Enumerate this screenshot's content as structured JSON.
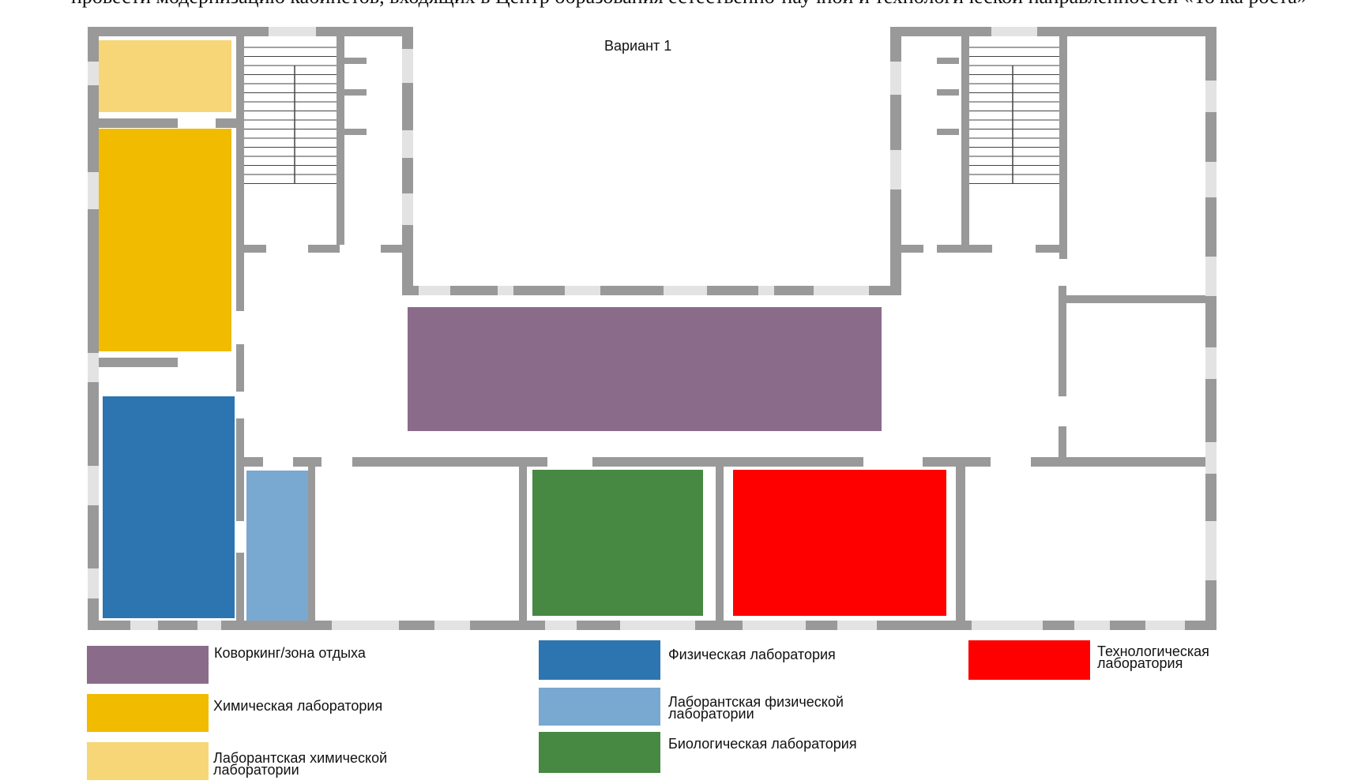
{
  "page": {
    "top_text": "провести модернизацию кабинетов, входящих в Центр образования естественно-научной и технологической направленностей «Точка роста»",
    "title": "Вариант 1"
  },
  "colors": {
    "wall": "#999999",
    "window": "#e3e3e3",
    "coworking": "#8b6b8a",
    "chem_lab": "#f1bb00",
    "chem_prep": "#f6d676",
    "phys_lab": "#2c75b1",
    "phys_prep": "#79a8d1",
    "bio_lab": "#478842",
    "tech_lab": "#ff0000"
  },
  "rooms": [
    {
      "id": "chem-prep",
      "label": "Лаборантская химической лаборатории",
      "color": "#f6d676"
    },
    {
      "id": "chem-lab",
      "label": "Химическая лаборатория",
      "color": "#f1bb00"
    },
    {
      "id": "phys-lab",
      "label": "Физическая лаборатория",
      "color": "#2c75b1"
    },
    {
      "id": "phys-prep",
      "label": "Лаборантская физической лаборатории",
      "color": "#79a8d1"
    },
    {
      "id": "coworking",
      "label": "Коворкинг/зона отдыха",
      "color": "#8b6b8a"
    },
    {
      "id": "bio-lab",
      "label": "Биологическая лаборатория",
      "color": "#478842"
    },
    {
      "id": "tech-lab",
      "label": "Технологическая лаборатория",
      "color": "#ff0000"
    }
  ],
  "legend": [
    {
      "line1": "Коворкинг/зона отдыха",
      "line2": "",
      "color": "#8b6b8a"
    },
    {
      "line1": "Химическая лаборатория",
      "line2": "",
      "color": "#f1bb00"
    },
    {
      "line1": "Лаборантская химической",
      "line2": "лаборатории",
      "color": "#f6d676"
    },
    {
      "line1": "Физическая лаборатория",
      "line2": "",
      "color": "#2c75b1"
    },
    {
      "line1": "Лаборантская физической",
      "line2": "лаборатории",
      "color": "#79a8d1"
    },
    {
      "line1": "Биологическая лаборатория",
      "line2": "",
      "color": "#478842"
    },
    {
      "line1": "Технологическая",
      "line2": "лаборатория",
      "color": "#ff0000"
    }
  ]
}
